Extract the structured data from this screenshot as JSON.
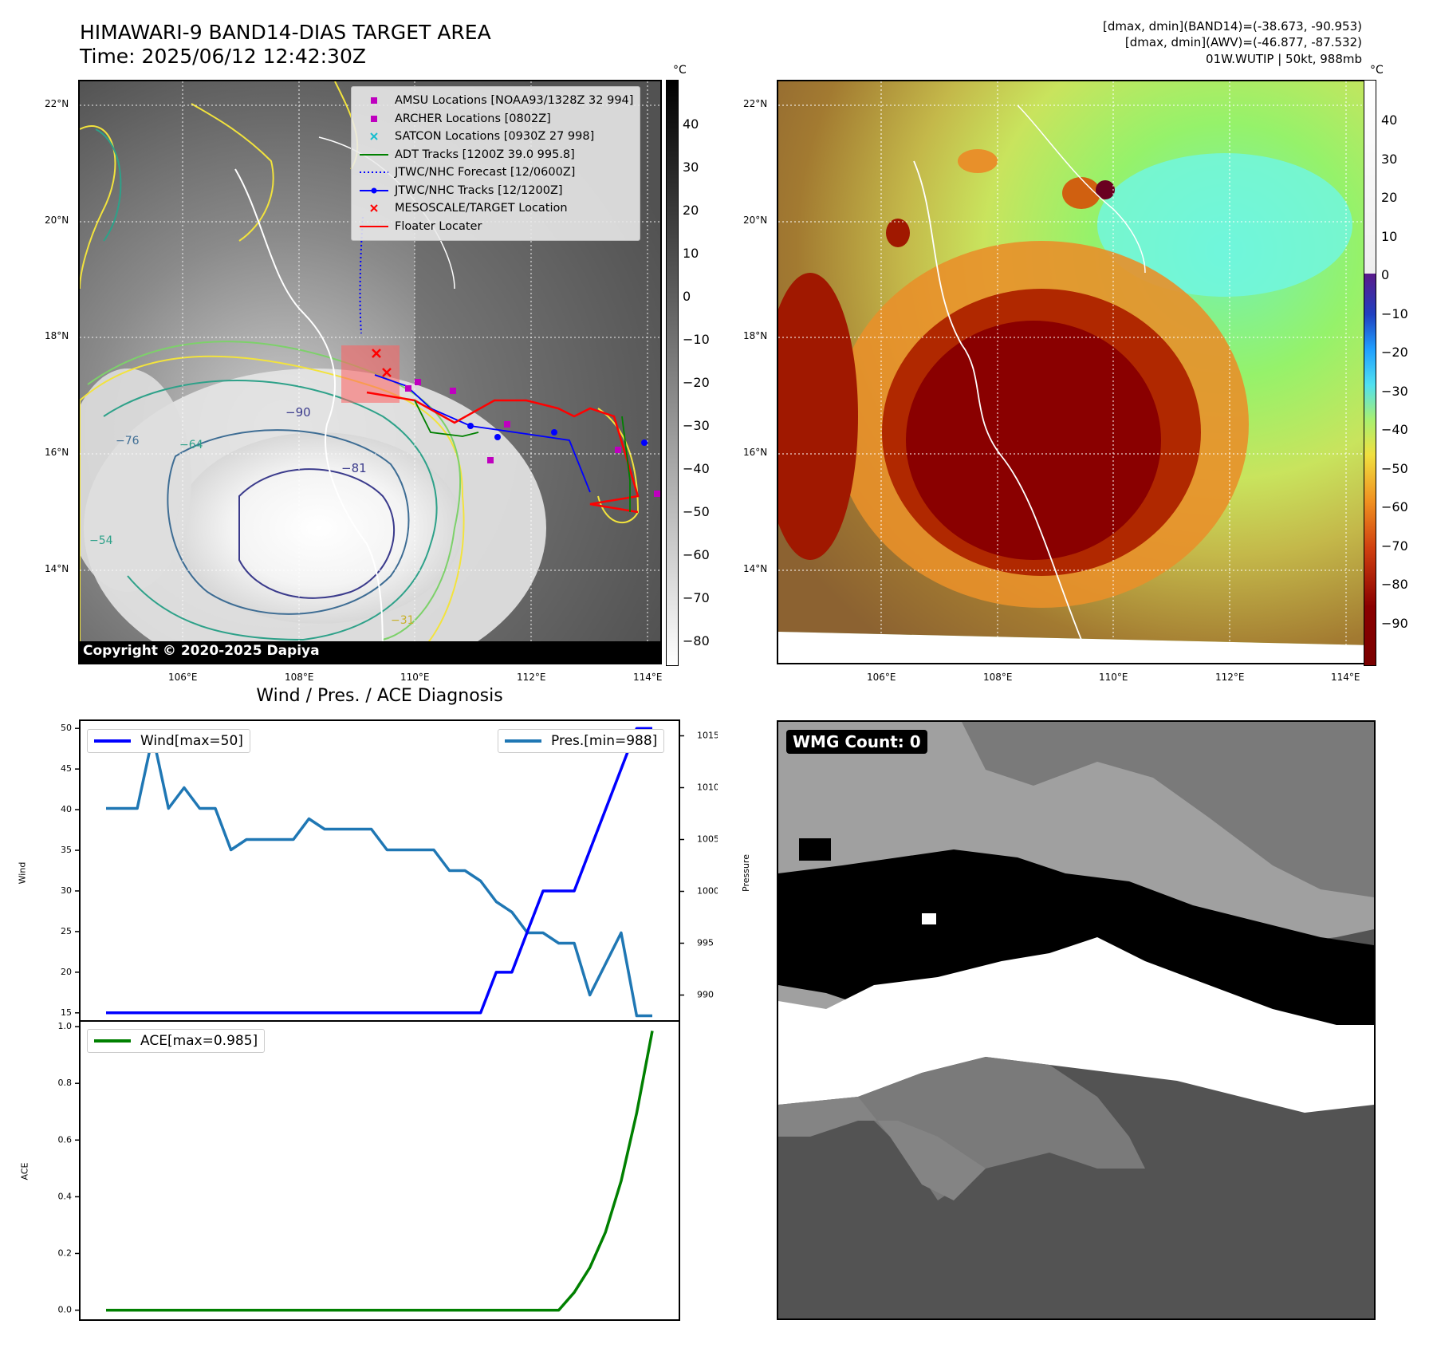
{
  "header": {
    "title_line1": "HIMAWARI-9 BAND14-DIAS TARGET AREA",
    "title_line2": "Time: 2025/06/12 12:42:30Z",
    "meta_line1": "[dmax, dmin](BAND14)=(-38.673, -90.953)",
    "meta_line2": "[dmax, dmin](AWV)=(-46.877, -87.532)",
    "meta_line3": "01W.WUTIP | 50kt, 988mb"
  },
  "ir_map": {
    "copyright": "Copyright © 2020-2025 Dapiya",
    "lat_labels": [
      "22°N",
      "20°N",
      "18°N",
      "16°N",
      "14°N"
    ],
    "lon_labels": [
      "106°E",
      "108°E",
      "110°E",
      "112°E",
      "114°E"
    ],
    "colorbar_unit": "°C",
    "colorbar_ticks": [
      "40",
      "30",
      "20",
      "10",
      "0",
      "−10",
      "−20",
      "−30",
      "−40",
      "−50",
      "−60",
      "−70",
      "−80"
    ],
    "contour_labels": [
      "−90",
      "−81",
      "−76",
      "−64",
      "−54",
      "−31"
    ],
    "legend": [
      {
        "label": "AMSU Locations [NOAA93/1328Z 32 994]",
        "symbol": "square",
        "color": "#bf00bf"
      },
      {
        "label": "ARCHER Locations [0802Z]",
        "symbol": "square",
        "color": "#bf00bf"
      },
      {
        "label": "SATCON Locations [0930Z 27 998]",
        "symbol": "x",
        "color": "#17becf"
      },
      {
        "label": "ADT Tracks [1200Z 39.0 995.8]",
        "symbol": "line",
        "color": "#008000"
      },
      {
        "label": "JTWC/NHC Forecast [12/0600Z]",
        "symbol": "dotted",
        "color": "#0000ff"
      },
      {
        "label": "JTWC/NHC Tracks [12/1200Z]",
        "symbol": "line-dot",
        "color": "#0000ff"
      },
      {
        "label": "MESOSCALE/TARGET Location",
        "symbol": "x",
        "color": "#ff0000"
      },
      {
        "label": "Floater Locater",
        "symbol": "line",
        "color": "#ff0000"
      }
    ]
  },
  "awv_map": {
    "lat_labels": [
      "22°N",
      "20°N",
      "18°N",
      "16°N",
      "14°N"
    ],
    "lon_labels": [
      "106°E",
      "108°E",
      "110°E",
      "112°E",
      "114°E"
    ],
    "colorbar_unit": "°C",
    "colorbar_ticks": [
      "40",
      "30",
      "20",
      "10",
      "0",
      "−10",
      "−20",
      "−30",
      "−40",
      "−50",
      "−60",
      "−70",
      "−80",
      "−90"
    ]
  },
  "wmg_panel": {
    "badge": "WMG Count: 0"
  },
  "chart_data": [
    {
      "type": "line",
      "title": "Wind / Pres. / ACE Diagnosis",
      "ylabel": "Wind",
      "y2label": "Pressure",
      "ylim": [
        14,
        51
      ],
      "y2lim": [
        987.5,
        1016.5
      ],
      "yticks": [
        15,
        20,
        25,
        30,
        35,
        40,
        45,
        50
      ],
      "y2ticks": [
        990,
        995,
        1000,
        1005,
        1010,
        1015
      ],
      "series": [
        {
          "name": "Wind[max=50]",
          "color": "#0000ff",
          "axis": "left",
          "values": [
            15,
            15,
            15,
            15,
            15,
            15,
            15,
            15,
            15,
            15,
            15,
            15,
            15,
            15,
            15,
            15,
            15,
            15,
            15,
            15,
            15,
            15,
            15,
            15,
            15,
            20,
            20,
            25,
            30,
            30,
            30,
            35,
            40,
            45,
            50,
            50
          ]
        },
        {
          "name": "Pres.[min=988]",
          "color": "#1f77b4",
          "axis": "right",
          "values": [
            1008,
            1008,
            1008,
            1015,
            1008,
            1010,
            1008,
            1008,
            1004,
            1005,
            1005,
            1005,
            1005,
            1007,
            1006,
            1006,
            1006,
            1006,
            1004,
            1004,
            1004,
            1004,
            1002,
            1002,
            1001,
            999,
            998,
            996,
            996,
            995,
            995,
            990,
            993,
            996,
            988,
            988
          ]
        }
      ]
    },
    {
      "type": "line",
      "ylabel": "ACE",
      "ylim": [
        -0.035,
        1.02
      ],
      "yticks": [
        0.0,
        0.2,
        0.4,
        0.6,
        0.8,
        1.0
      ],
      "series": [
        {
          "name": "ACE[max=0.985]",
          "color": "#008000",
          "values": [
            0,
            0,
            0,
            0,
            0,
            0,
            0,
            0,
            0,
            0,
            0,
            0,
            0,
            0,
            0,
            0,
            0,
            0,
            0,
            0,
            0,
            0,
            0,
            0,
            0,
            0,
            0,
            0,
            0,
            0,
            0.0625,
            0.15,
            0.275,
            0.455,
            0.695,
            0.985
          ]
        }
      ]
    }
  ]
}
